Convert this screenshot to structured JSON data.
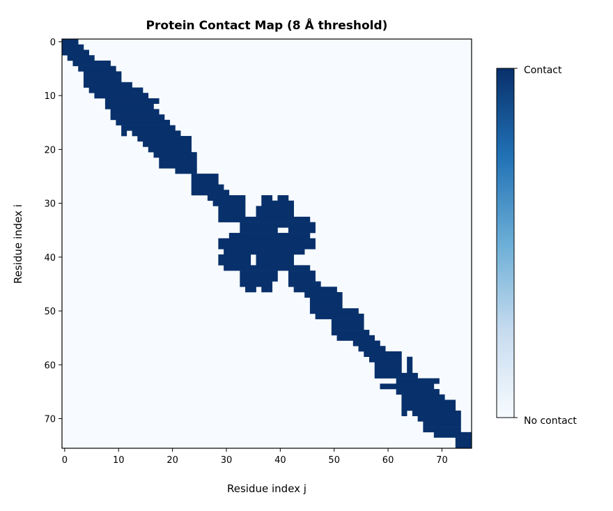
{
  "chart_data": {
    "type": "heatmap",
    "title": "Protein Contact Map (8 Å threshold)",
    "xlabel": "Residue index j",
    "ylabel": "Residue index i",
    "n": 76,
    "xticks": [
      0,
      10,
      20,
      30,
      40,
      50,
      60,
      70
    ],
    "yticks": [
      0,
      10,
      20,
      30,
      40,
      50,
      60,
      70
    ],
    "colorbar": {
      "labels": [
        "Contact",
        "No contact"
      ],
      "cmap": "Blues"
    },
    "colors": {
      "contact": "#08306b",
      "none": "#f7fbff"
    },
    "contacts_by_row": [
      [
        [
          0,
          2
        ]
      ],
      [
        [
          0,
          3
        ]
      ],
      [
        [
          0,
          4
        ]
      ],
      [
        [
          1,
          5
        ]
      ],
      [
        [
          2,
          8
        ]
      ],
      [
        [
          3,
          9
        ]
      ],
      [
        [
          4,
          10
        ]
      ],
      [
        [
          4,
          10
        ]
      ],
      [
        [
          4,
          12
        ]
      ],
      [
        [
          5,
          14
        ]
      ],
      [
        [
          6,
          15
        ]
      ],
      [
        [
          8,
          17
        ]
      ],
      [
        [
          8,
          16
        ]
      ],
      [
        [
          9,
          17
        ]
      ],
      [
        [
          9,
          18
        ]
      ],
      [
        [
          10,
          19
        ]
      ],
      [
        [
          11,
          20
        ]
      ],
      [
        [
          11,
          11
        ],
        [
          13,
          21
        ]
      ],
      [
        [
          14,
          23
        ]
      ],
      [
        [
          15,
          23
        ]
      ],
      [
        [
          16,
          23
        ]
      ],
      [
        [
          17,
          24
        ]
      ],
      [
        [
          18,
          24
        ]
      ],
      [
        [
          18,
          24
        ]
      ],
      [
        [
          21,
          24
        ]
      ],
      [
        [
          24,
          28
        ]
      ],
      [
        [
          24,
          28
        ]
      ],
      [
        [
          24,
          29
        ]
      ],
      [
        [
          24,
          30
        ]
      ],
      [
        [
          27,
          33
        ],
        [
          37,
          38
        ],
        [
          40,
          41
        ]
      ],
      [
        [
          28,
          33
        ],
        [
          37,
          42
        ]
      ],
      [
        [
          29,
          33
        ],
        [
          36,
          42
        ]
      ],
      [
        [
          29,
          33
        ],
        [
          36,
          42
        ]
      ],
      [
        [
          29,
          45
        ]
      ],
      [
        [
          33,
          46
        ]
      ],
      [
        [
          33,
          39
        ],
        [
          42,
          46
        ]
      ],
      [
        [
          31,
          45
        ]
      ],
      [
        [
          29,
          46
        ]
      ],
      [
        [
          29,
          46
        ]
      ],
      [
        [
          30,
          44
        ]
      ],
      [
        [
          29,
          34
        ],
        [
          36,
          42
        ]
      ],
      [
        [
          29,
          34
        ],
        [
          36,
          42
        ]
      ],
      [
        [
          30,
          45
        ]
      ],
      [
        [
          33,
          39
        ],
        [
          42,
          46
        ]
      ],
      [
        [
          33,
          39
        ],
        [
          42,
          46
        ]
      ],
      [
        [
          33,
          38
        ],
        [
          42,
          47
        ]
      ],
      [
        [
          34,
          35
        ],
        [
          37,
          38
        ],
        [
          43,
          50
        ]
      ],
      [
        [
          45,
          51
        ]
      ],
      [
        [
          46,
          51
        ]
      ],
      [
        [
          46,
          51
        ]
      ],
      [
        [
          46,
          54
        ]
      ],
      [
        [
          47,
          55
        ]
      ],
      [
        [
          50,
          55
        ]
      ],
      [
        [
          50,
          55
        ]
      ],
      [
        [
          50,
          56
        ]
      ],
      [
        [
          51,
          57
        ]
      ],
      [
        [
          54,
          58
        ]
      ],
      [
        [
          55,
          59
        ]
      ],
      [
        [
          56,
          62
        ]
      ],
      [
        [
          57,
          62
        ],
        [
          64,
          64
        ]
      ],
      [
        [
          58,
          62
        ],
        [
          64,
          64
        ]
      ],
      [
        [
          58,
          62
        ],
        [
          64,
          64
        ]
      ],
      [
        [
          58,
          65
        ]
      ],
      [
        [
          62,
          69
        ]
      ],
      [
        [
          59,
          68
        ]
      ],
      [
        [
          62,
          69
        ]
      ],
      [
        [
          63,
          70
        ]
      ],
      [
        [
          63,
          72
        ]
      ],
      [
        [
          63,
          72
        ]
      ],
      [
        [
          63,
          63
        ],
        [
          65,
          73
        ]
      ],
      [
        [
          66,
          73
        ]
      ],
      [
        [
          67,
          73
        ]
      ],
      [
        [
          67,
          73
        ]
      ],
      [
        [
          69,
          75
        ]
      ],
      [
        [
          73,
          75
        ]
      ],
      [
        [
          73,
          75
        ]
      ]
    ]
  }
}
